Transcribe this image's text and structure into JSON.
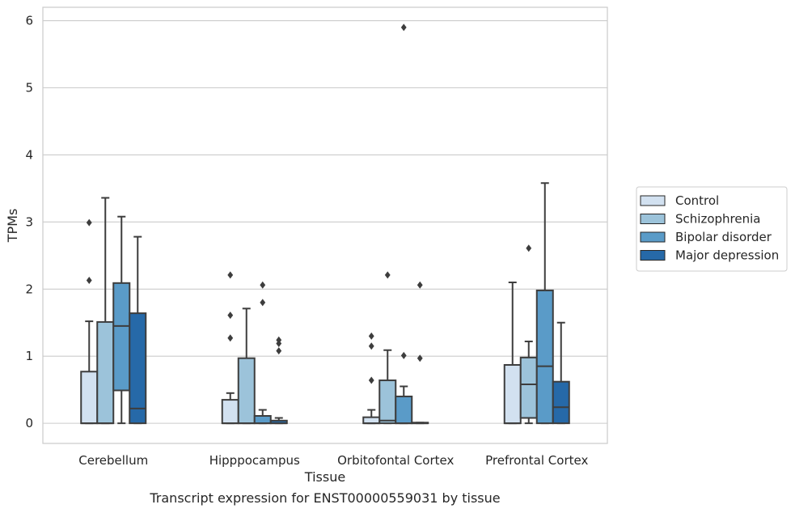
{
  "chart_data": {
    "type": "box",
    "caption": "Transcript expression for ENST00000559031 by tissue",
    "xlabel": "Tissue",
    "ylabel": "TPMs",
    "ylim": [
      -0.3,
      6.2
    ],
    "yticks": [
      "0",
      "1",
      "2",
      "3",
      "4",
      "5",
      "6"
    ],
    "grid": true,
    "legend_position": "right",
    "categories": [
      "Cerebellum",
      "Hipppocampus",
      "Orbitofontal Cortex",
      "Prefrontal Cortex"
    ],
    "series": [
      {
        "name": "Control",
        "color": "#d2e1f0",
        "boxes": [
          {
            "whisker_low": 0,
            "q1": 0,
            "median": 0,
            "q3": 0.77,
            "whisker_high": 1.52,
            "outliers": [
              2.13,
              2.99
            ]
          },
          {
            "whisker_low": 0,
            "q1": 0,
            "median": 0,
            "q3": 0.35,
            "whisker_high": 0.45,
            "outliers": [
              1.27,
              1.61,
              2.21
            ]
          },
          {
            "whisker_low": 0,
            "q1": 0,
            "median": 0,
            "q3": 0.09,
            "whisker_high": 0.2,
            "outliers": [
              0.64,
              1.15,
              1.3
            ]
          },
          {
            "whisker_low": 0,
            "q1": 0,
            "median": 0,
            "q3": 0.87,
            "whisker_high": 2.1,
            "outliers": []
          }
        ]
      },
      {
        "name": "Schizophrenia",
        "color": "#9cc3da",
        "boxes": [
          {
            "whisker_low": 0,
            "q1": 0,
            "median": 0,
            "q3": 1.51,
            "whisker_high": 3.36,
            "outliers": []
          },
          {
            "whisker_low": 0,
            "q1": 0,
            "median": 0,
            "q3": 0.97,
            "whisker_high": 1.71,
            "outliers": []
          },
          {
            "whisker_low": 0,
            "q1": 0,
            "median": 0.04,
            "q3": 0.64,
            "whisker_high": 1.09,
            "outliers": [
              2.21
            ]
          },
          {
            "whisker_low": 0,
            "q1": 0.08,
            "median": 0.58,
            "q3": 0.98,
            "whisker_high": 1.22,
            "outliers": [
              2.61
            ]
          }
        ]
      },
      {
        "name": "Bipolar disorder",
        "color": "#5a9bc8",
        "boxes": [
          {
            "whisker_low": 0,
            "q1": 0.49,
            "median": 1.45,
            "q3": 2.09,
            "whisker_high": 3.08,
            "outliers": []
          },
          {
            "whisker_low": 0,
            "q1": 0,
            "median": 0,
            "q3": 0.11,
            "whisker_high": 0.2,
            "outliers": [
              1.8,
              2.06
            ]
          },
          {
            "whisker_low": 0,
            "q1": 0,
            "median": 0,
            "q3": 0.4,
            "whisker_high": 0.55,
            "outliers": [
              1.01,
              5.9
            ]
          },
          {
            "whisker_low": 0,
            "q1": 0,
            "median": 0.85,
            "q3": 1.98,
            "whisker_high": 3.58,
            "outliers": []
          }
        ]
      },
      {
        "name": "Major depression",
        "color": "#2669a8",
        "boxes": [
          {
            "whisker_low": 0,
            "q1": 0,
            "median": 0.22,
            "q3": 1.64,
            "whisker_high": 2.78,
            "outliers": []
          },
          {
            "whisker_low": 0,
            "q1": 0,
            "median": 0,
            "q3": 0.04,
            "whisker_high": 0.08,
            "outliers": [
              1.08,
              1.19,
              1.24
            ]
          },
          {
            "whisker_low": 0,
            "q1": 0,
            "median": 0,
            "q3": 0.01,
            "whisker_high": 0.01,
            "outliers": [
              0.97,
              2.06
            ]
          },
          {
            "whisker_low": 0,
            "q1": 0,
            "median": 0.24,
            "q3": 0.62,
            "whisker_high": 1.5,
            "outliers": []
          }
        ]
      }
    ]
  }
}
